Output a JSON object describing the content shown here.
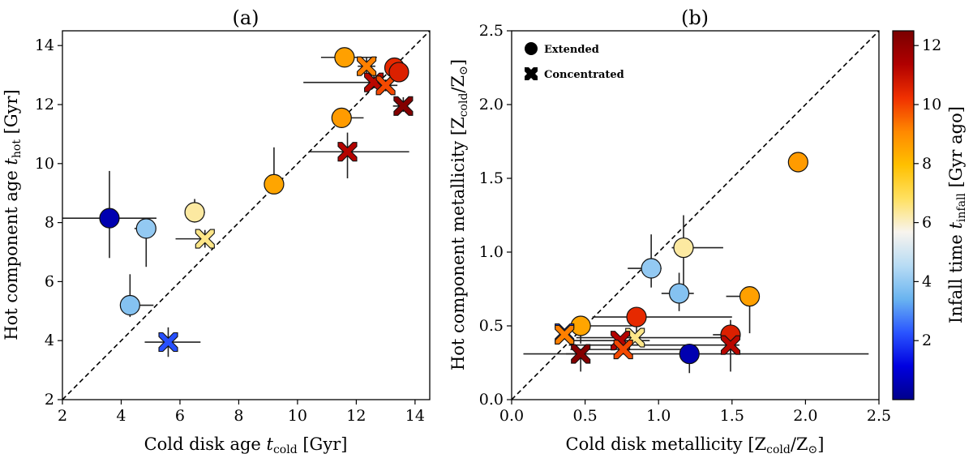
{
  "chart_data": [
    {
      "type": "scatter",
      "panel": "a",
      "title": "(a)",
      "xlabel": "Cold disk age t_cold [Gyr]",
      "ylabel": "Hot component age t_hot [Gyr]",
      "xlim": [
        2,
        14.5
      ],
      "ylim": [
        2,
        14.5
      ],
      "xticks": [
        2,
        4,
        6,
        8,
        10,
        12,
        14
      ],
      "yticks": [
        2,
        4,
        6,
        8,
        10,
        12,
        14
      ],
      "reference_line": "one-to-one dashed",
      "points": [
        {
          "x": 3.6,
          "y": 8.15,
          "marker": "circle",
          "tinfall": 0.5,
          "xerr": [
            2.7,
            1.6
          ],
          "yerr": [
            1.35,
            1.6
          ]
        },
        {
          "x": 4.85,
          "y": 7.8,
          "marker": "circle",
          "tinfall": 4.0,
          "xerr": [
            0.4,
            0.3
          ],
          "yerr": [
            1.3,
            0.3
          ]
        },
        {
          "x": 4.3,
          "y": 5.2,
          "marker": "circle",
          "tinfall": 3.8,
          "xerr": [
            0.2,
            0.8
          ],
          "yerr": [
            0.4,
            1.05
          ]
        },
        {
          "x": 5.6,
          "y": 3.95,
          "marker": "cross",
          "tinfall": 2.2,
          "xerr": [
            0.8,
            1.1
          ],
          "yerr": [
            0.5,
            0.5
          ]
        },
        {
          "x": 6.5,
          "y": 8.35,
          "marker": "circle",
          "tinfall": 6.3,
          "xerr": [
            0.3,
            0.35
          ],
          "yerr": [
            0.35,
            0.45
          ]
        },
        {
          "x": 6.85,
          "y": 7.45,
          "marker": "cross",
          "tinfall": 6.5,
          "xerr": [
            1.0,
            0.1
          ],
          "yerr": [
            0.3,
            0.3
          ]
        },
        {
          "x": 9.2,
          "y": 9.3,
          "marker": "circle",
          "tinfall": 8.5,
          "xerr": [
            0.3,
            0.3
          ],
          "yerr": [
            0.3,
            1.25
          ]
        },
        {
          "x": 11.6,
          "y": 13.6,
          "marker": "circle",
          "tinfall": 8.6,
          "xerr": [
            0.8,
            1.1
          ],
          "yerr": [
            0.15,
            0.2
          ]
        },
        {
          "x": 11.5,
          "y": 11.55,
          "marker": "circle",
          "tinfall": 8.7,
          "xerr": [
            0.2,
            0.75
          ],
          "yerr": [
            0.25,
            0.3
          ]
        },
        {
          "x": 11.7,
          "y": 10.4,
          "marker": "cross",
          "tinfall": 11.3,
          "xerr": [
            1.3,
            2.1
          ],
          "yerr": [
            0.9,
            0.65
          ]
        },
        {
          "x": 12.35,
          "y": 13.3,
          "marker": "cross",
          "tinfall": 9.2,
          "xerr": [
            0.3,
            0.3
          ],
          "yerr": [
            0.25,
            0.3
          ]
        },
        {
          "x": 12.6,
          "y": 12.75,
          "marker": "cross",
          "tinfall": 11.2,
          "xerr": [
            2.4,
            0.3
          ],
          "yerr": [
            0.2,
            0.25
          ]
        },
        {
          "x": 13.0,
          "y": 12.65,
          "marker": "cross",
          "tinfall": 9.9,
          "xerr": [
            0.3,
            0.4
          ],
          "yerr": [
            0.2,
            0.2
          ]
        },
        {
          "x": 13.3,
          "y": 13.25,
          "marker": "circle",
          "tinfall": 10.4,
          "xerr": [
            0.3,
            0.15
          ],
          "yerr": [
            0.2,
            0.2
          ]
        },
        {
          "x": 13.45,
          "y": 13.1,
          "marker": "circle",
          "tinfall": 10.6,
          "xerr": [
            0.25,
            0.15
          ],
          "yerr": [
            0.2,
            0.2
          ]
        },
        {
          "x": 13.6,
          "y": 11.95,
          "marker": "cross",
          "tinfall": 12.3,
          "xerr": [
            0.35,
            0.1
          ],
          "yerr": [
            0.2,
            0.3
          ]
        }
      ]
    },
    {
      "type": "scatter",
      "panel": "b",
      "title": "(b)",
      "xlabel": "Cold disk metallicity [Z_cold/Z_⊙]",
      "ylabel": "Hot component metallicity [Z_cold/Z_⊙]",
      "xlim": [
        0.0,
        2.5
      ],
      "ylim": [
        0.0,
        2.5
      ],
      "xticks": [
        "0.0",
        "0.5",
        "1.0",
        "1.5",
        "2.0",
        "2.5"
      ],
      "yticks": [
        "0.0",
        "0.5",
        "1.0",
        "1.5",
        "2.0",
        "2.5"
      ],
      "reference_line": "one-to-one dashed",
      "legend": {
        "position": "top-left",
        "entries": [
          {
            "marker": "circle",
            "label": "Extended"
          },
          {
            "marker": "cross",
            "label": "Concentrated"
          }
        ]
      },
      "points": [
        {
          "x": 1.95,
          "y": 1.61,
          "marker": "circle",
          "tinfall": 8.7,
          "xerr": [
            0.0,
            0.0
          ],
          "yerr": [
            0.0,
            0.0
          ]
        },
        {
          "x": 1.17,
          "y": 1.03,
          "marker": "circle",
          "tinfall": 6.3,
          "xerr": [
            0.08,
            0.27
          ],
          "yerr": [
            0.25,
            0.22
          ]
        },
        {
          "x": 0.95,
          "y": 0.89,
          "marker": "circle",
          "tinfall": 4.0,
          "xerr": [
            0.16,
            0.07
          ],
          "yerr": [
            0.13,
            0.23
          ]
        },
        {
          "x": 1.14,
          "y": 0.72,
          "marker": "circle",
          "tinfall": 3.8,
          "xerr": [
            0.12,
            0.1
          ],
          "yerr": [
            0.12,
            0.14
          ]
        },
        {
          "x": 1.62,
          "y": 0.7,
          "marker": "circle",
          "tinfall": 8.6,
          "xerr": [
            0.16,
            0.0
          ],
          "yerr": [
            0.25,
            0.0
          ]
        },
        {
          "x": 0.85,
          "y": 0.56,
          "marker": "circle",
          "tinfall": 10.4,
          "xerr": [
            0.3,
            0.65
          ],
          "yerr": [
            0.15,
            0.0
          ]
        },
        {
          "x": 0.47,
          "y": 0.5,
          "marker": "circle",
          "tinfall": 8.5,
          "xerr": [
            0.07,
            0.35
          ],
          "yerr": [
            0.12,
            0.0
          ]
        },
        {
          "x": 1.49,
          "y": 0.44,
          "marker": "circle",
          "tinfall": 10.6,
          "xerr": [
            0.12,
            0.06
          ],
          "yerr": [
            0.12,
            0.1
          ]
        },
        {
          "x": 0.36,
          "y": 0.45,
          "marker": "cross",
          "tinfall": 2.2,
          "xerr": [
            0.0,
            0.0
          ],
          "yerr": [
            0.0,
            0.0
          ]
        },
        {
          "x": 0.36,
          "y": 0.44,
          "marker": "cross",
          "tinfall": 9.2,
          "xerr": [
            0.02,
            0.0
          ],
          "yerr": [
            0.0,
            0.0
          ]
        },
        {
          "x": 0.84,
          "y": 0.42,
          "marker": "cross",
          "tinfall": 6.5,
          "xerr": [
            0.4,
            0.6
          ],
          "yerr": [
            0.0,
            0.0
          ]
        },
        {
          "x": 0.74,
          "y": 0.4,
          "marker": "cross",
          "tinfall": 11.3,
          "xerr": [
            0.36,
            0.2
          ],
          "yerr": [
            0.0,
            0.0
          ]
        },
        {
          "x": 0.76,
          "y": 0.34,
          "marker": "cross",
          "tinfall": 9.9,
          "xerr": [
            0.36,
            0.4
          ],
          "yerr": [
            0.0,
            0.0
          ]
        },
        {
          "x": 1.49,
          "y": 0.37,
          "marker": "cross",
          "tinfall": 11.2,
          "xerr": [
            1.1,
            0.06
          ],
          "yerr": [
            0.18,
            0.0
          ]
        },
        {
          "x": 1.21,
          "y": 0.31,
          "marker": "circle",
          "tinfall": 0.5,
          "xerr": [
            1.13,
            1.22
          ],
          "yerr": [
            0.13,
            0.0
          ]
        },
        {
          "x": 0.47,
          "y": 0.31,
          "marker": "cross",
          "tinfall": 12.3,
          "xerr": [
            0.1,
            0.0
          ],
          "yerr": [
            0.12,
            0.0
          ]
        }
      ]
    }
  ],
  "colorbar": {
    "label": "Infall time t_infall [Gyr ago]",
    "range": [
      0,
      12.5
    ],
    "ticks": [
      "2",
      "4",
      "6",
      "8",
      "10",
      "12"
    ],
    "stops": [
      "#00008b",
      "#0000e0",
      "#2a55ff",
      "#6ab4f0",
      "#b8dcf4",
      "#f8f4ee",
      "#ffe060",
      "#ffc000",
      "#ff8800",
      "#f03000",
      "#b00000",
      "#7a0000"
    ]
  }
}
